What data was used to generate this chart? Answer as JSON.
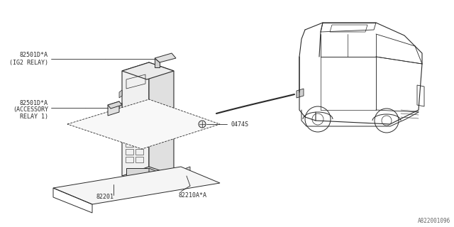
{
  "bg_color": "#ffffff",
  "line_color": "#2a2a2a",
  "fig_width": 6.4,
  "fig_height": 3.2,
  "dpi": 100,
  "watermark": "A822001096",
  "labels": {
    "ig2_relay_part": "82501D*A",
    "ig2_relay_name": "(IG2 RELAY)",
    "acc_relay_part": "82501D*A",
    "acc_relay_name": "(ACCESSORY",
    "acc_relay_name2": "RELAY 1)",
    "screw": "0474S",
    "fuse_box": "82201",
    "fuse_cover": "82210A*A"
  }
}
